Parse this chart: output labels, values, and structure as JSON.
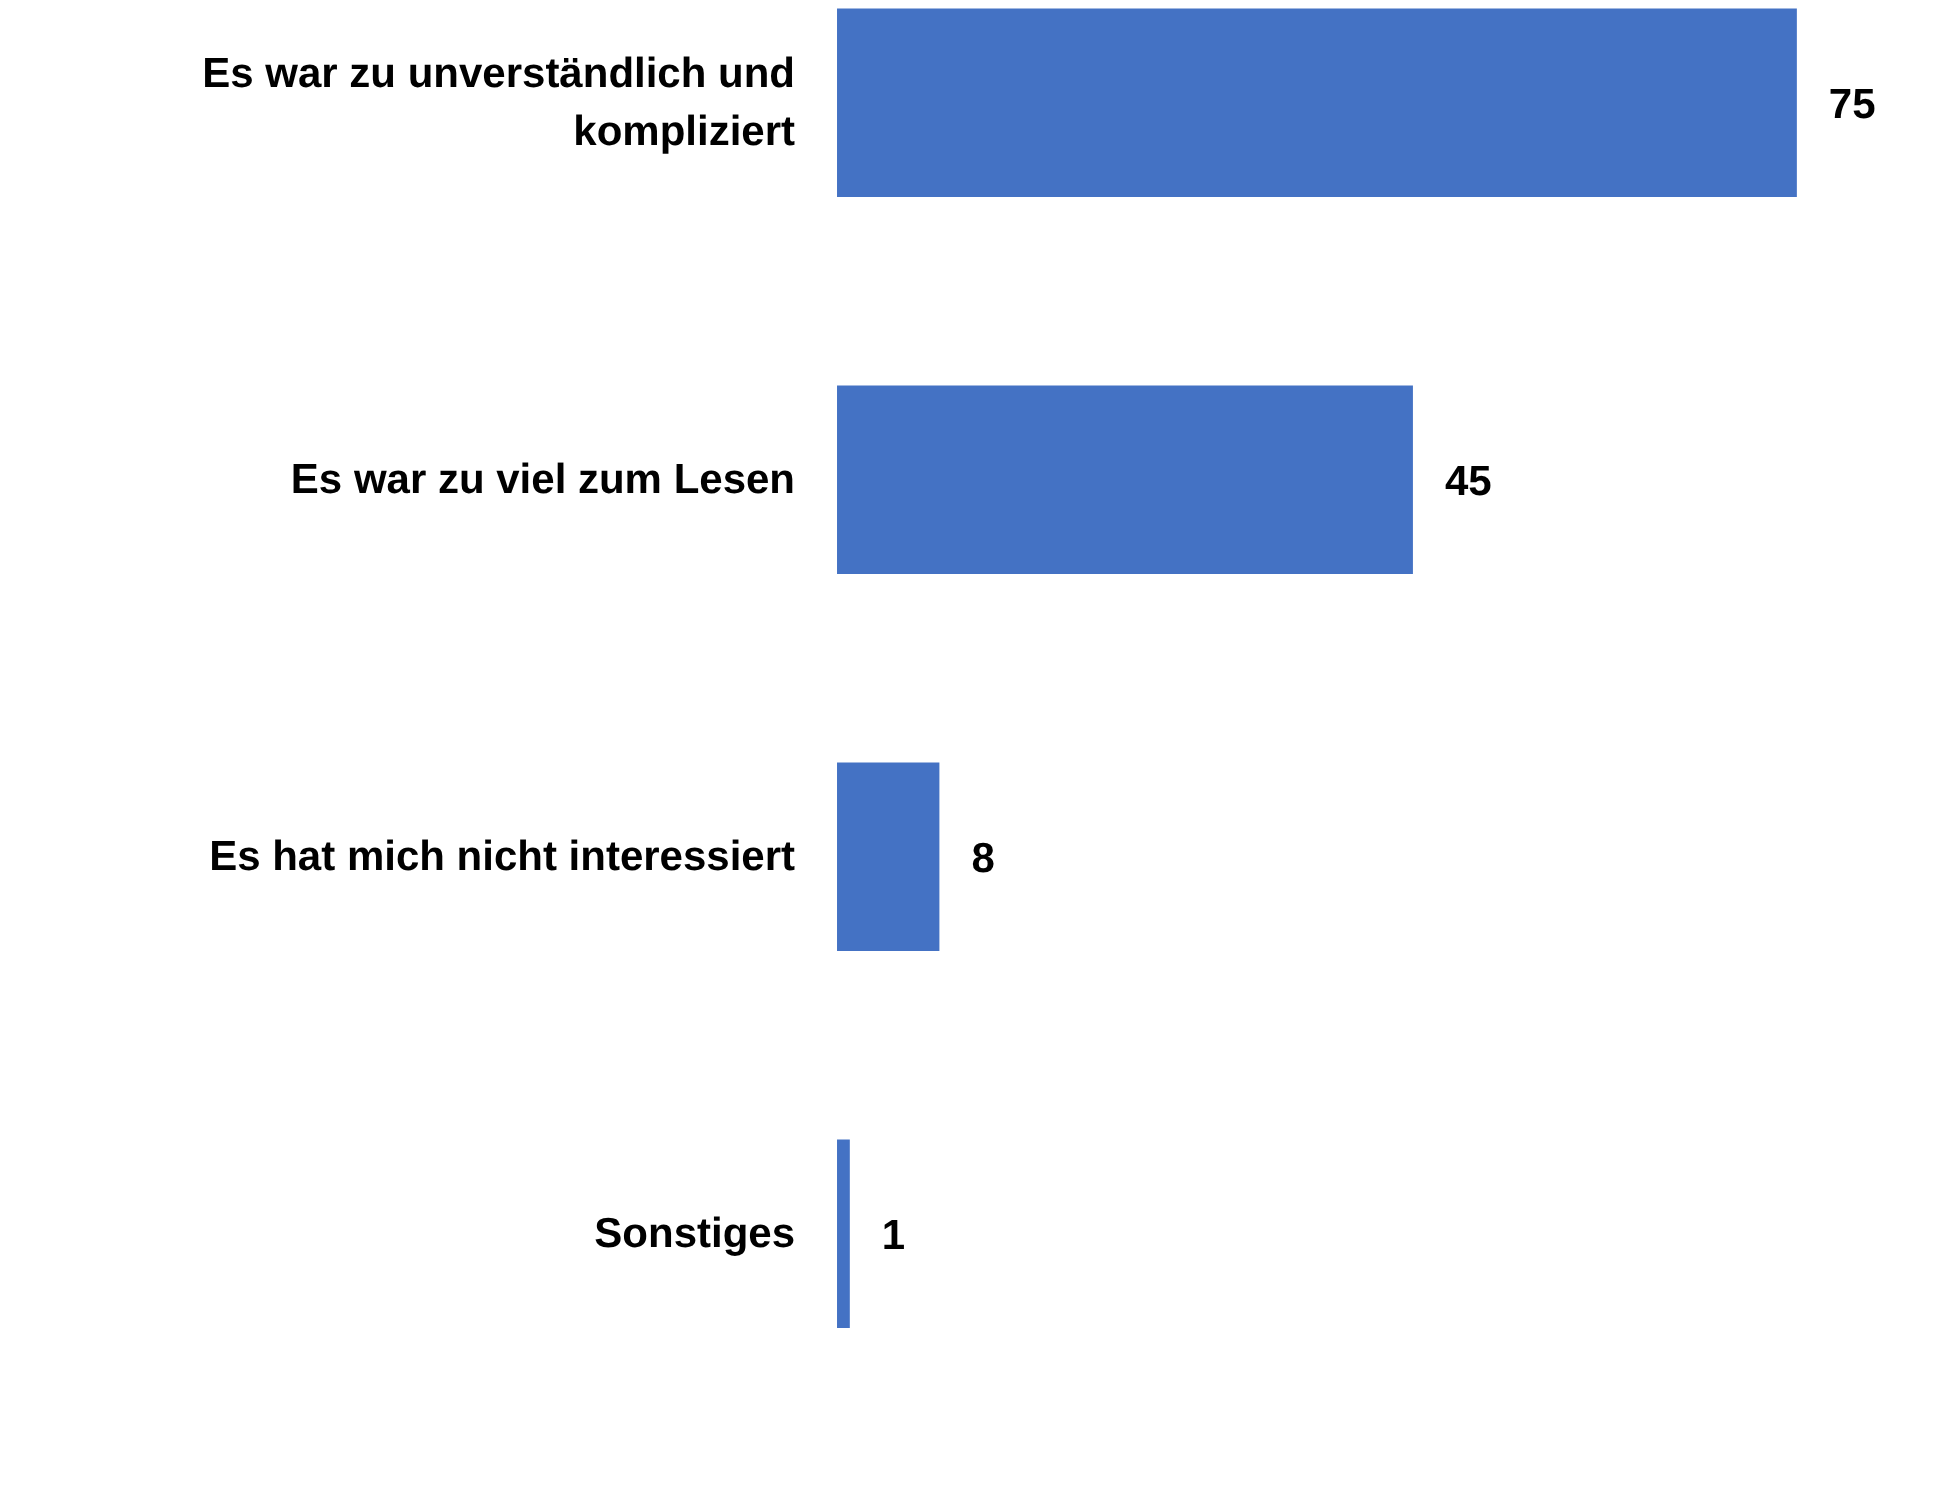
{
  "chart_data": {
    "type": "bar",
    "orientation": "horizontal",
    "categories": [
      "Es war zu unverständlich und kompliziert",
      "Es war zu viel zum Lesen",
      "Es hat mich nicht interessiert",
      "Sonstiges"
    ],
    "values": [
      75,
      45,
      8,
      1
    ],
    "color": "#4472c4",
    "data_labels": true
  }
}
